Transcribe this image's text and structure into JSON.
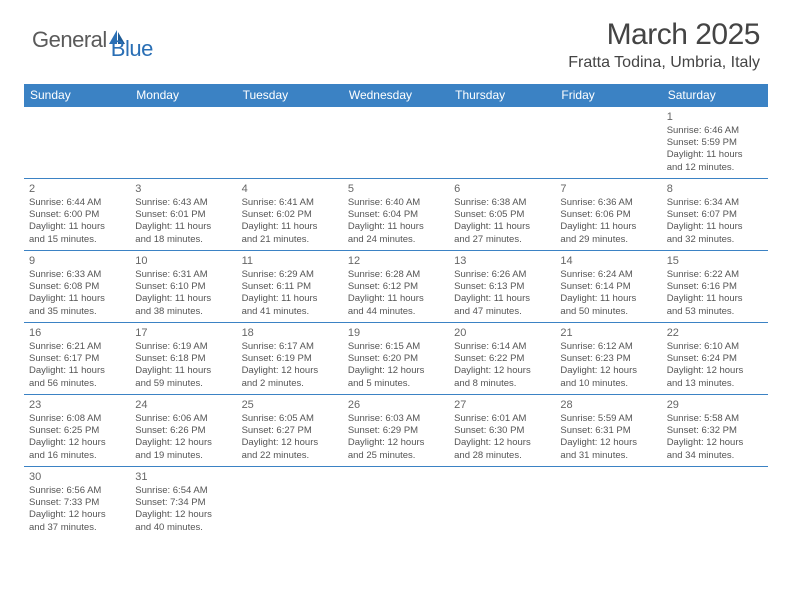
{
  "logo": {
    "text1": "General",
    "text2": "Blue",
    "icon_color": "#2a6fb5",
    "text_color": "#5a5a5a"
  },
  "title": "March 2025",
  "location": "Fratta Todina, Umbria, Italy",
  "header_bg": "#3b82c4",
  "day_names": [
    "Sunday",
    "Monday",
    "Tuesday",
    "Wednesday",
    "Thursday",
    "Friday",
    "Saturday"
  ],
  "weeks": [
    [
      null,
      null,
      null,
      null,
      null,
      null,
      {
        "n": "1",
        "sr": "6:46 AM",
        "ss": "5:59 PM",
        "dh": "11",
        "dm": "12"
      }
    ],
    [
      {
        "n": "2",
        "sr": "6:44 AM",
        "ss": "6:00 PM",
        "dh": "11",
        "dm": "15"
      },
      {
        "n": "3",
        "sr": "6:43 AM",
        "ss": "6:01 PM",
        "dh": "11",
        "dm": "18"
      },
      {
        "n": "4",
        "sr": "6:41 AM",
        "ss": "6:02 PM",
        "dh": "11",
        "dm": "21"
      },
      {
        "n": "5",
        "sr": "6:40 AM",
        "ss": "6:04 PM",
        "dh": "11",
        "dm": "24"
      },
      {
        "n": "6",
        "sr": "6:38 AM",
        "ss": "6:05 PM",
        "dh": "11",
        "dm": "27"
      },
      {
        "n": "7",
        "sr": "6:36 AM",
        "ss": "6:06 PM",
        "dh": "11",
        "dm": "29"
      },
      {
        "n": "8",
        "sr": "6:34 AM",
        "ss": "6:07 PM",
        "dh": "11",
        "dm": "32"
      }
    ],
    [
      {
        "n": "9",
        "sr": "6:33 AM",
        "ss": "6:08 PM",
        "dh": "11",
        "dm": "35"
      },
      {
        "n": "10",
        "sr": "6:31 AM",
        "ss": "6:10 PM",
        "dh": "11",
        "dm": "38"
      },
      {
        "n": "11",
        "sr": "6:29 AM",
        "ss": "6:11 PM",
        "dh": "11",
        "dm": "41"
      },
      {
        "n": "12",
        "sr": "6:28 AM",
        "ss": "6:12 PM",
        "dh": "11",
        "dm": "44"
      },
      {
        "n": "13",
        "sr": "6:26 AM",
        "ss": "6:13 PM",
        "dh": "11",
        "dm": "47"
      },
      {
        "n": "14",
        "sr": "6:24 AM",
        "ss": "6:14 PM",
        "dh": "11",
        "dm": "50"
      },
      {
        "n": "15",
        "sr": "6:22 AM",
        "ss": "6:16 PM",
        "dh": "11",
        "dm": "53"
      }
    ],
    [
      {
        "n": "16",
        "sr": "6:21 AM",
        "ss": "6:17 PM",
        "dh": "11",
        "dm": "56"
      },
      {
        "n": "17",
        "sr": "6:19 AM",
        "ss": "6:18 PM",
        "dh": "11",
        "dm": "59"
      },
      {
        "n": "18",
        "sr": "6:17 AM",
        "ss": "6:19 PM",
        "dh": "12",
        "dm": "2"
      },
      {
        "n": "19",
        "sr": "6:15 AM",
        "ss": "6:20 PM",
        "dh": "12",
        "dm": "5"
      },
      {
        "n": "20",
        "sr": "6:14 AM",
        "ss": "6:22 PM",
        "dh": "12",
        "dm": "8"
      },
      {
        "n": "21",
        "sr": "6:12 AM",
        "ss": "6:23 PM",
        "dh": "12",
        "dm": "10"
      },
      {
        "n": "22",
        "sr": "6:10 AM",
        "ss": "6:24 PM",
        "dh": "12",
        "dm": "13"
      }
    ],
    [
      {
        "n": "23",
        "sr": "6:08 AM",
        "ss": "6:25 PM",
        "dh": "12",
        "dm": "16"
      },
      {
        "n": "24",
        "sr": "6:06 AM",
        "ss": "6:26 PM",
        "dh": "12",
        "dm": "19"
      },
      {
        "n": "25",
        "sr": "6:05 AM",
        "ss": "6:27 PM",
        "dh": "12",
        "dm": "22"
      },
      {
        "n": "26",
        "sr": "6:03 AM",
        "ss": "6:29 PM",
        "dh": "12",
        "dm": "25"
      },
      {
        "n": "27",
        "sr": "6:01 AM",
        "ss": "6:30 PM",
        "dh": "12",
        "dm": "28"
      },
      {
        "n": "28",
        "sr": "5:59 AM",
        "ss": "6:31 PM",
        "dh": "12",
        "dm": "31"
      },
      {
        "n": "29",
        "sr": "5:58 AM",
        "ss": "6:32 PM",
        "dh": "12",
        "dm": "34"
      }
    ],
    [
      {
        "n": "30",
        "sr": "6:56 AM",
        "ss": "7:33 PM",
        "dh": "12",
        "dm": "37"
      },
      {
        "n": "31",
        "sr": "6:54 AM",
        "ss": "7:34 PM",
        "dh": "12",
        "dm": "40"
      },
      null,
      null,
      null,
      null,
      null
    ]
  ],
  "labels": {
    "sunrise": "Sunrise:",
    "sunset": "Sunset:",
    "daylight": "Daylight:",
    "hours": "hours",
    "and": "and",
    "minutes": "minutes."
  }
}
